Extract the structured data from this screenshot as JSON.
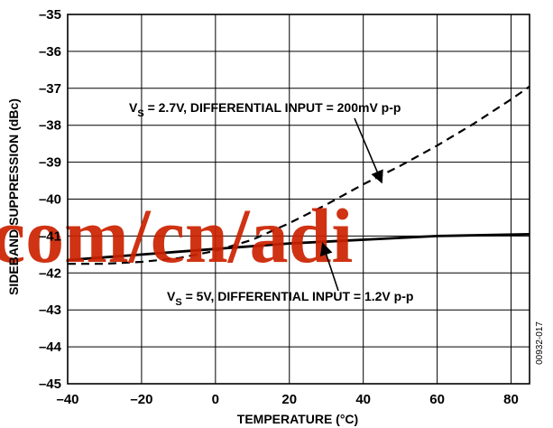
{
  "chart_data": {
    "type": "line",
    "xlabel": "TEMPERATURE (°C)",
    "ylabel": "SIDEBAND SUPPRESSION (dBc)",
    "xlim": [
      -40,
      85
    ],
    "ylim": [
      -45,
      -35
    ],
    "xticks": [
      "–40",
      "–20",
      "0",
      "20",
      "40",
      "60",
      "80"
    ],
    "xtick_values": [
      -40,
      -20,
      0,
      20,
      40,
      60,
      80
    ],
    "yticks": [
      "–35",
      "–36",
      "–37",
      "–38",
      "–39",
      "–40",
      "–41",
      "–42",
      "–43",
      "–44",
      "–45"
    ],
    "ytick_values": [
      -35,
      -36,
      -37,
      -38,
      -39,
      -40,
      -41,
      -42,
      -43,
      -44,
      -45
    ],
    "grid": true,
    "series": [
      {
        "name": "VS = 2.7V, DIFFERENTIAL INPUT = 200mV p-p",
        "style": "dashed",
        "x": [
          -40,
          -30,
          -20,
          -10,
          0,
          10,
          20,
          30,
          40,
          50,
          60,
          70,
          80,
          85
        ],
        "y": [
          -41.75,
          -41.75,
          -41.7,
          -41.6,
          -41.4,
          -41.1,
          -40.65,
          -40.15,
          -39.6,
          -39.1,
          -38.55,
          -37.95,
          -37.3,
          -36.95
        ]
      },
      {
        "name": "VS = 5V, DIFFERENTIAL INPUT = 1.2V p-p",
        "style": "solid",
        "x": [
          -40,
          -20,
          0,
          20,
          40,
          60,
          85
        ],
        "y": [
          -41.65,
          -41.5,
          -41.35,
          -41.2,
          -41.1,
          -41.0,
          -40.95
        ]
      }
    ],
    "annotations": [
      {
        "main": "V",
        "sub": "S",
        "rest": " = 2.7V, DIFFERENTIAL INPUT = 200mV p-p",
        "arrow_to": [
          45,
          -39.55
        ]
      },
      {
        "main": "V",
        "sub": "S",
        "rest": " = 5V, DIFFERENTIAL INPUT = 1.2V p-p",
        "arrow_to": [
          29,
          -41.2
        ]
      }
    ]
  },
  "figure_code": "00932-017",
  "watermark": "com/cn/adi"
}
